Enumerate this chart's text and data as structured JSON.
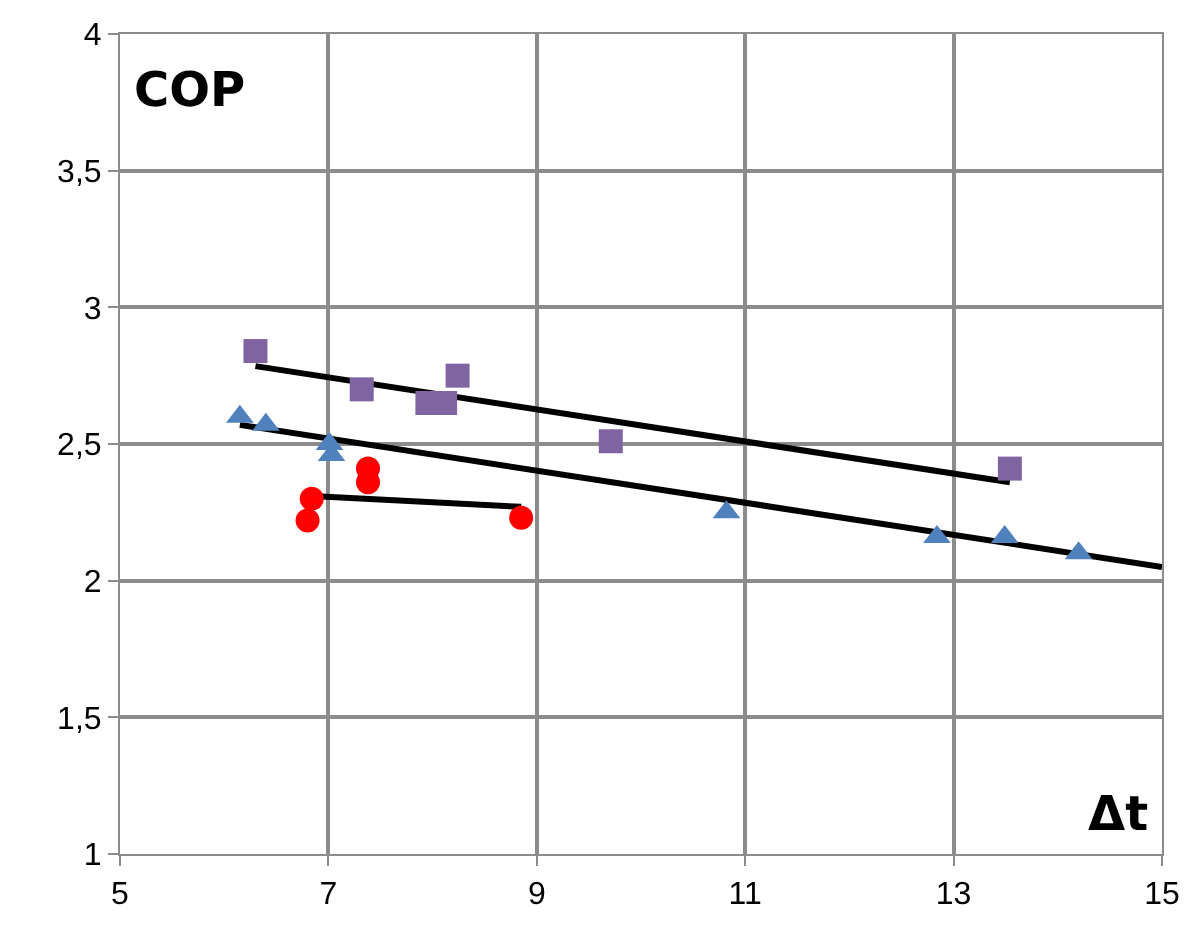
{
  "chart_data": {
    "type": "scatter",
    "xlabel": "Δt",
    "ylabel": "COP",
    "xlim": [
      5,
      15
    ],
    "xticks": [
      5,
      7,
      9,
      11,
      13,
      15
    ],
    "ylim": [
      1,
      4
    ],
    "yticks": [
      1,
      {
        "value": 1.5,
        "label": "1,5"
      },
      2,
      {
        "value": 2.5,
        "label": "2,5"
      },
      3,
      {
        "value": 3.5,
        "label": "3,5"
      },
      4
    ],
    "grid": true,
    "series": [
      {
        "marker": "square",
        "color": "#8064a2",
        "x": [
          6.3,
          7.32,
          7.95,
          8.12,
          8.24,
          9.71,
          13.54
        ],
        "values": [
          2.84,
          2.7,
          2.65,
          2.65,
          2.75,
          2.51,
          2.41
        ]
      },
      {
        "marker": "triangle",
        "color": "#4f81bd",
        "x": [
          6.15,
          6.4,
          7.01,
          7.03,
          10.82,
          12.84,
          13.49,
          14.2
        ],
        "values": [
          2.6,
          2.57,
          2.5,
          2.46,
          2.25,
          2.16,
          2.16,
          2.1
        ]
      },
      {
        "marker": "circle",
        "color": "#ff0000",
        "x": [
          6.84,
          6.8,
          7.38,
          7.38,
          8.85
        ],
        "values": [
          2.3,
          2.22,
          2.41,
          2.36,
          2.23
        ]
      },
      {
        "type": "line",
        "marker": "none",
        "color": "#000000",
        "x": [
          6.3,
          13.54
        ],
        "values": [
          2.785,
          2.36
        ]
      },
      {
        "type": "line",
        "marker": "none",
        "color": "#000000",
        "x": [
          6.15,
          15
        ],
        "values": [
          2.57,
          2.05
        ]
      },
      {
        "type": "line",
        "marker": "none",
        "color": "#000000",
        "x": [
          6.84,
          8.85
        ],
        "values": [
          2.31,
          2.27
        ]
      }
    ]
  }
}
